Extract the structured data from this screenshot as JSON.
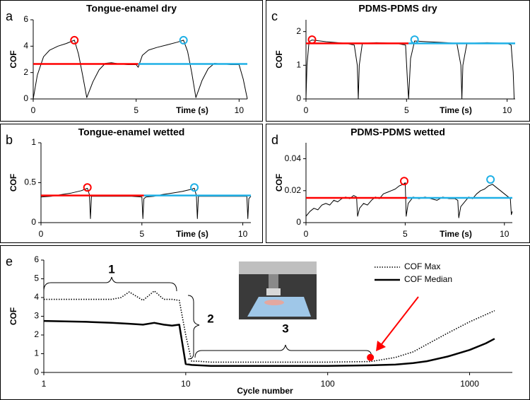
{
  "chart_data": [
    {
      "type": "line",
      "label": "a",
      "title": "Tongue-enamel dry",
      "x_label": "Time (s)",
      "y_label": "COF",
      "xlim": [
        0,
        10.4
      ],
      "xticks": [
        0,
        5,
        10
      ],
      "ylim": [
        0,
        6
      ],
      "yticks": [
        0,
        2,
        4,
        6
      ],
      "series": [
        {
          "color": "#000000",
          "style": "trace",
          "x": [
            0,
            0.2,
            0.5,
            0.8,
            1.2,
            1.6,
            2.0,
            2.2,
            2.4,
            2.6,
            2.9,
            3.2,
            3.5,
            3.8,
            4.2,
            4.6,
            5.0,
            5.1,
            5.3,
            5.6,
            6.0,
            6.5,
            7.0,
            7.3,
            7.5,
            7.7,
            7.9,
            8.2,
            8.5,
            8.8,
            9.2,
            9.6,
            10.0,
            10.2,
            10.4
          ],
          "values": [
            0,
            1.8,
            3.2,
            3.7,
            4.0,
            4.2,
            4.45,
            3.4,
            1.8,
            0.1,
            1.3,
            2.2,
            2.7,
            2.75,
            2.65,
            2.6,
            2.6,
            2.4,
            3.3,
            3.7,
            3.9,
            4.1,
            4.3,
            4.45,
            3.6,
            2.0,
            0.1,
            1.4,
            2.3,
            2.7,
            2.65,
            2.6,
            2.6,
            1.5,
            0
          ]
        },
        {
          "color": "#ff0000",
          "style": "median",
          "x": [
            0,
            5.1
          ],
          "values": [
            2.65,
            2.65
          ]
        },
        {
          "color": "#1fb0e6",
          "style": "median",
          "x": [
            5.1,
            10.4
          ],
          "values": [
            2.65,
            2.65
          ]
        },
        {
          "color": "#ff0000",
          "style": "circle",
          "x": [
            2.0
          ],
          "values": [
            4.45
          ]
        },
        {
          "color": "#1fb0e6",
          "style": "circle",
          "x": [
            7.3
          ],
          "values": [
            4.45
          ]
        }
      ]
    },
    {
      "type": "line",
      "label": "b",
      "title": "Tongue-enamel wetted",
      "x_label": "Time (s)",
      "y_label": "COF",
      "xlim": [
        0,
        10.4
      ],
      "xticks": [
        0,
        5,
        10
      ],
      "ylim": [
        0,
        1
      ],
      "yticks": [
        0,
        0.5,
        1
      ],
      "series": [
        {
          "color": "#000000",
          "style": "trace",
          "x": [
            0,
            0.5,
            1.0,
            1.5,
            2.0,
            2.3,
            2.4,
            2.45,
            2.5,
            3.0,
            3.5,
            4.0,
            4.5,
            5.0,
            5.05,
            5.1,
            5.2,
            5.6,
            6.0,
            6.5,
            7.0,
            7.5,
            7.6,
            7.7,
            7.75,
            7.8,
            8.5,
            9.0,
            9.5,
            10.0,
            10.2,
            10.25,
            10.3,
            10.4
          ],
          "values": [
            0.32,
            0.33,
            0.35,
            0.37,
            0.4,
            0.43,
            0.35,
            0.05,
            0.33,
            0.33,
            0.33,
            0.33,
            0.33,
            0.32,
            0.05,
            0.3,
            0.32,
            0.33,
            0.35,
            0.37,
            0.39,
            0.42,
            0.43,
            0.34,
            0.05,
            0.33,
            0.33,
            0.33,
            0.33,
            0.33,
            0.33,
            0.05,
            0.3,
            0.33
          ]
        },
        {
          "color": "#ff0000",
          "style": "median",
          "x": [
            0,
            5.1
          ],
          "values": [
            0.34,
            0.34
          ]
        },
        {
          "color": "#1fb0e6",
          "style": "median",
          "x": [
            5.1,
            10.4
          ],
          "values": [
            0.34,
            0.34
          ]
        },
        {
          "color": "#ff0000",
          "style": "circle",
          "x": [
            2.3
          ],
          "values": [
            0.44
          ]
        },
        {
          "color": "#1fb0e6",
          "style": "circle",
          "x": [
            7.6
          ],
          "values": [
            0.44
          ]
        }
      ]
    },
    {
      "type": "line",
      "label": "c",
      "title": "PDMS-PDMS dry",
      "x_label": "Time (s)",
      "y_label": "COF",
      "xlim": [
        0,
        10.4
      ],
      "xticks": [
        0,
        5,
        10
      ],
      "ylim": [
        0,
        2.35
      ],
      "yticks": [
        0,
        1,
        2
      ],
      "series": [
        {
          "color": "#000000",
          "style": "trace",
          "x": [
            0,
            0.05,
            0.15,
            0.3,
            1.0,
            2.0,
            2.4,
            2.55,
            2.6,
            2.65,
            2.8,
            3.5,
            4.5,
            4.95,
            5.05,
            5.1,
            5.2,
            5.4,
            6.0,
            7.0,
            7.5,
            7.7,
            7.75,
            7.8,
            8.0,
            9.0,
            10.0,
            10.2,
            10.3,
            10.35
          ],
          "values": [
            0,
            1.0,
            1.7,
            1.75,
            1.7,
            1.65,
            1.6,
            1.0,
            0,
            1.0,
            1.65,
            1.67,
            1.65,
            1.6,
            0.5,
            0,
            1.2,
            1.72,
            1.7,
            1.67,
            1.65,
            1.0,
            0,
            1.0,
            1.65,
            1.67,
            1.65,
            1.6,
            0.8,
            0
          ]
        },
        {
          "color": "#ff0000",
          "style": "median",
          "x": [
            0,
            5.1
          ],
          "values": [
            1.65,
            1.65
          ]
        },
        {
          "color": "#1fb0e6",
          "style": "median",
          "x": [
            5.1,
            10.4
          ],
          "values": [
            1.65,
            1.65
          ]
        },
        {
          "color": "#ff0000",
          "style": "circle",
          "x": [
            0.3
          ],
          "values": [
            1.76
          ]
        },
        {
          "color": "#1fb0e6",
          "style": "circle",
          "x": [
            5.4
          ],
          "values": [
            1.76
          ]
        }
      ]
    },
    {
      "type": "line",
      "label": "d",
      "title": "PDMS-PDMS wetted",
      "x_label": "Time (s)",
      "y_label": "COF",
      "xlim": [
        0,
        10.4
      ],
      "xticks": [
        0,
        5,
        10
      ],
      "ylim": [
        0,
        0.05
      ],
      "yticks": [
        0,
        0.02,
        0.04
      ],
      "series": [
        {
          "color": "#000000",
          "style": "trace",
          "x": [
            0,
            0.2,
            0.4,
            0.6,
            0.8,
            1.0,
            1.2,
            1.4,
            1.6,
            1.8,
            2.0,
            2.2,
            2.4,
            2.55,
            2.6,
            2.7,
            2.9,
            3.1,
            3.3,
            3.5,
            3.7,
            3.9,
            4.1,
            4.3,
            4.5,
            4.7,
            4.9,
            5.0,
            5.05,
            5.15,
            5.4,
            5.7,
            6.0,
            6.3,
            6.6,
            6.9,
            7.2,
            7.5,
            7.65,
            7.7,
            7.8,
            8.0,
            8.2,
            8.4,
            8.6,
            8.8,
            9.0,
            9.2,
            9.4,
            9.6,
            9.8,
            10.0,
            10.2,
            10.3,
            10.35,
            10.4
          ],
          "values": [
            0.004,
            0.007,
            0.009,
            0.008,
            0.011,
            0.012,
            0.011,
            0.014,
            0.013,
            0.015,
            0.016,
            0.015,
            0.017,
            0.016,
            0.004,
            0.009,
            0.012,
            0.011,
            0.014,
            0.016,
            0.015,
            0.018,
            0.019,
            0.02,
            0.021,
            0.023,
            0.024,
            0.025,
            0.004,
            0.012,
            0.016,
            0.015,
            0.016,
            0.015,
            0.014,
            0.016,
            0.015,
            0.015,
            0.014,
            0.003,
            0.01,
            0.013,
            0.016,
            0.015,
            0.018,
            0.02,
            0.021,
            0.023,
            0.024,
            0.022,
            0.02,
            0.018,
            0.016,
            0.015,
            0.005,
            0.007
          ]
        },
        {
          "color": "#ff0000",
          "style": "median",
          "x": [
            0,
            5.1
          ],
          "values": [
            0.0155,
            0.0155
          ]
        },
        {
          "color": "#1fb0e6",
          "style": "median",
          "x": [
            5.1,
            10.4
          ],
          "values": [
            0.0155,
            0.0155
          ]
        },
        {
          "color": "#ff0000",
          "style": "circle",
          "x": [
            4.95
          ],
          "values": [
            0.026
          ]
        },
        {
          "color": "#1fb0e6",
          "style": "circle",
          "x": [
            9.3
          ],
          "values": [
            0.027
          ]
        }
      ]
    },
    {
      "type": "line",
      "label": "e",
      "x_label": "Cycle number",
      "y_label": "COF",
      "x_log": true,
      "xlim": [
        1,
        2000
      ],
      "xticks": [
        1,
        10,
        100,
        1000
      ],
      "ylim": [
        0,
        6
      ],
      "yticks": [
        0,
        1,
        2,
        3,
        4,
        5,
        6
      ],
      "legend": "upper right",
      "annotations": [
        "1",
        "2",
        "3"
      ],
      "series": [
        {
          "name": "COF Max",
          "color": "#000000",
          "style": "dotted",
          "x": [
            1,
            2,
            3,
            3.5,
            4,
            5,
            6,
            7,
            8,
            9,
            10,
            11,
            12,
            15,
            20,
            50,
            100,
            200,
            300,
            400,
            500,
            700,
            1000,
            1500
          ],
          "values": [
            3.9,
            3.9,
            3.9,
            4.0,
            4.3,
            3.85,
            4.35,
            3.9,
            3.9,
            3.85,
            2.0,
            0.6,
            0.6,
            0.55,
            0.55,
            0.55,
            0.55,
            0.58,
            0.8,
            1.1,
            1.5,
            2.1,
            2.7,
            3.3
          ]
        },
        {
          "name": "COF Median",
          "color": "#000000",
          "style": "solid",
          "x": [
            1,
            2,
            3,
            4,
            5,
            6,
            7,
            8,
            9,
            10,
            11,
            15,
            20,
            50,
            100,
            200,
            300,
            400,
            500,
            700,
            1000,
            1300,
            1500
          ],
          "values": [
            2.75,
            2.7,
            2.65,
            2.6,
            2.55,
            2.65,
            2.55,
            2.5,
            2.55,
            0.45,
            0.4,
            0.35,
            0.35,
            0.35,
            0.35,
            0.38,
            0.42,
            0.5,
            0.6,
            0.85,
            1.2,
            1.55,
            1.8
          ]
        },
        {
          "color": "#ff0000",
          "style": "dot",
          "x": [
            200
          ],
          "values": [
            0.8
          ]
        }
      ]
    }
  ]
}
